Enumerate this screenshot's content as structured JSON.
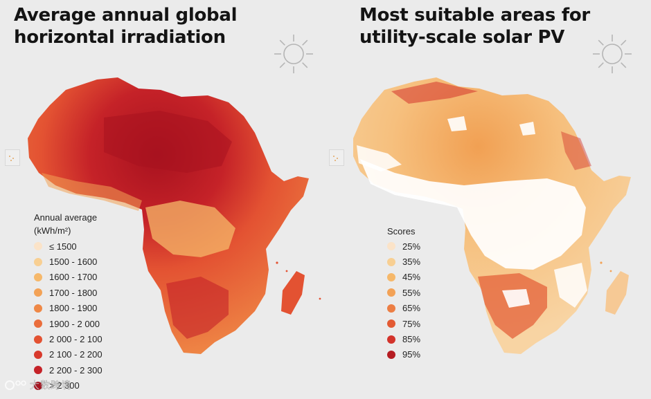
{
  "left_panel": {
    "title_line1": "Average annual global",
    "title_line2": "horizontal irradiation",
    "legend": {
      "title": "Annual average",
      "unit": "(kWh/m²)",
      "items": [
        {
          "label": "≤ 1500",
          "color": "#fbe3c8"
        },
        {
          "label": "1500 - 1600",
          "color": "#f8cf92"
        },
        {
          "label": "1600 - 1700",
          "color": "#f6b86a"
        },
        {
          "label": "1700 - 1800",
          "color": "#f3a256"
        },
        {
          "label": "1800 - 1900",
          "color": "#ef8846"
        },
        {
          "label": "1900 - 2 000",
          "color": "#ea6d3b"
        },
        {
          "label": "2 000 - 2 100",
          "color": "#e35232"
        },
        {
          "label": "2 100 - 2 200",
          "color": "#d8392c"
        },
        {
          "label": "2 200 - 2 300",
          "color": "#c52228"
        },
        {
          "label": "> 2 300",
          "color": "#a8121f"
        }
      ]
    }
  },
  "right_panel": {
    "title_line1": "Most suitable areas for",
    "title_line2": "utility-scale solar PV",
    "legend": {
      "title": "Scores",
      "items": [
        {
          "label": "25%",
          "color": "#fbe3c8"
        },
        {
          "label": "35%",
          "color": "#f8cf92"
        },
        {
          "label": "45%",
          "color": "#f6b86a"
        },
        {
          "label": "55%",
          "color": "#f3a256"
        },
        {
          "label": "65%",
          "color": "#ec7e44"
        },
        {
          "label": "75%",
          "color": "#e35a33"
        },
        {
          "label": "85%",
          "color": "#d3332b"
        },
        {
          "label": "95%",
          "color": "#b51c22"
        }
      ]
    }
  },
  "watermark": {
    "text": "大数跨境"
  },
  "colors": {
    "background": "#ebebeb",
    "sun_stroke": "#b5b5b5"
  }
}
